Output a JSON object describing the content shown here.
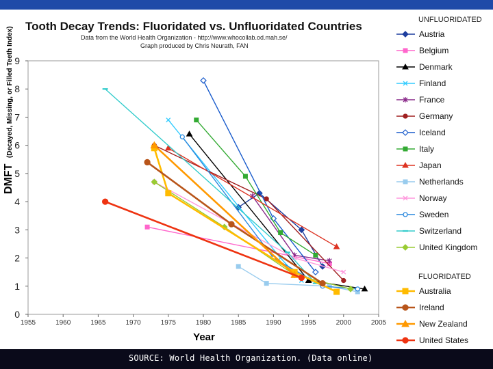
{
  "chart_data": {
    "type": "line",
    "title": "Tooth Decay Trends:  Fluoridated vs. Unfluoridated Countries",
    "subtitle_lines": [
      "Data from the World Health Organization - http://www.whocollab.od.mah.se/",
      "Graph produced by Chris Neurath, FAN"
    ],
    "xlabel": "Year",
    "ylabel_big": "DMFT",
    "ylabel_small": "(Decayed, Missing, or Filled Teeth Index)",
    "xlim": [
      1955,
      2005
    ],
    "ylim": [
      0,
      9
    ],
    "xticks": [
      1955,
      1960,
      1965,
      1970,
      1975,
      1980,
      1985,
      1990,
      1995,
      2000,
      2005
    ],
    "yticks": [
      0,
      1,
      2,
      3,
      4,
      5,
      6,
      7,
      8,
      9
    ],
    "legend_groups": [
      {
        "heading": "UNFLUORIDATED",
        "names": [
          "Austria",
          "Belgium",
          "Denmark",
          "Finland",
          "France",
          "Germany",
          "Iceland",
          "Italy",
          "Japan",
          "Netherlands",
          "Norway",
          "Sweden",
          "Switzerland",
          "United Kingdom"
        ]
      },
      {
        "heading": "FLUORIDATED",
        "names": [
          "Australia",
          "Ireland",
          "New Zealand",
          "United States"
        ]
      }
    ],
    "series": [
      {
        "name": "Austria",
        "group": "unfluoridated",
        "color": "#1f3f9f",
        "marker": "diamond",
        "fill": true,
        "bold": false,
        "x": [
          1985,
          1988,
          1994,
          1997
        ],
        "y": [
          3.8,
          4.3,
          3.0,
          1.7
        ]
      },
      {
        "name": "Belgium",
        "group": "unfluoridated",
        "color": "#ff66cc",
        "marker": "square",
        "fill": true,
        "bold": false,
        "x": [
          1972,
          1998
        ],
        "y": [
          3.1,
          1.8
        ]
      },
      {
        "name": "Denmark",
        "group": "unfluoridated",
        "color": "#000000",
        "marker": "triangle",
        "fill": true,
        "bold": false,
        "x": [
          1978,
          1995,
          2003
        ],
        "y": [
          6.4,
          1.2,
          0.9
        ]
      },
      {
        "name": "Finland",
        "group": "unfluoridated",
        "color": "#33ccff",
        "marker": "x",
        "fill": false,
        "bold": false,
        "x": [
          1975,
          1991,
          1994
        ],
        "y": [
          6.9,
          2.0,
          1.2
        ]
      },
      {
        "name": "France",
        "group": "unfluoridated",
        "color": "#8a2a8a",
        "marker": "star",
        "fill": false,
        "bold": false,
        "x": [
          1987,
          1993,
          1998
        ],
        "y": [
          4.2,
          2.1,
          1.9
        ]
      },
      {
        "name": "Germany",
        "group": "unfluoridated",
        "color": "#a02020",
        "marker": "circle",
        "fill": true,
        "bold": false,
        "x": [
          1973,
          1989,
          2000
        ],
        "y": [
          6.0,
          4.1,
          1.2
        ]
      },
      {
        "name": "Iceland",
        "group": "unfluoridated",
        "color": "#1a5ccc",
        "marker": "diamond",
        "fill": false,
        "bold": false,
        "x": [
          1980,
          1990,
          1996
        ],
        "y": [
          8.3,
          3.4,
          1.5
        ]
      },
      {
        "name": "Italy",
        "group": "unfluoridated",
        "color": "#33aa33",
        "marker": "square",
        "fill": true,
        "bold": false,
        "x": [
          1979,
          1986,
          1991,
          1996
        ],
        "y": [
          6.9,
          4.9,
          2.9,
          2.1
        ]
      },
      {
        "name": "Japan",
        "group": "unfluoridated",
        "color": "#dd3322",
        "marker": "triangle",
        "fill": true,
        "bold": false,
        "x": [
          1975,
          1999
        ],
        "y": [
          5.9,
          2.4
        ]
      },
      {
        "name": "Netherlands",
        "group": "unfluoridated",
        "color": "#99ccee",
        "marker": "square",
        "fill": true,
        "bold": false,
        "x": [
          1985,
          1989,
          1998,
          2002
        ],
        "y": [
          1.7,
          1.1,
          1.0,
          0.8
        ]
      },
      {
        "name": "Norway",
        "group": "unfluoridated",
        "color": "#ff99dd",
        "marker": "x",
        "fill": false,
        "bold": false,
        "x": [
          1973,
          1993,
          2000
        ],
        "y": [
          4.7,
          2.0,
          1.5
        ]
      },
      {
        "name": "Sweden",
        "group": "unfluoridated",
        "color": "#2a88dd",
        "marker": "circle",
        "fill": false,
        "bold": false,
        "x": [
          1977,
          1990,
          1997,
          2002
        ],
        "y": [
          6.3,
          2.0,
          1.0,
          0.9
        ]
      },
      {
        "name": "Switzerland",
        "group": "unfluoridated",
        "color": "#33cccc",
        "marker": "dash",
        "fill": true,
        "bold": false,
        "x": [
          1966,
          1992,
          1996
        ],
        "y": [
          8.0,
          2.2,
          1.1
        ]
      },
      {
        "name": "United Kingdom",
        "group": "unfluoridated",
        "color": "#99cc33",
        "marker": "diamond",
        "fill": true,
        "bold": false,
        "x": [
          1973,
          1983,
          1993,
          2001
        ],
        "y": [
          4.7,
          3.1,
          1.4,
          0.9
        ]
      },
      {
        "name": "Australia",
        "group": "fluoridated",
        "color": "#ffbb00",
        "marker": "square",
        "fill": true,
        "bold": true,
        "x": [
          1973,
          1975,
          1993,
          1999
        ],
        "y": [
          5.9,
          4.3,
          1.5,
          0.8
        ]
      },
      {
        "name": "Ireland",
        "group": "fluoridated",
        "color": "#b8551a",
        "marker": "circle",
        "fill": true,
        "bold": true,
        "x": [
          1972,
          1984,
          1997
        ],
        "y": [
          5.4,
          3.2,
          1.1
        ]
      },
      {
        "name": "New Zealand",
        "group": "fluoridated",
        "color": "#ff9900",
        "marker": "triangle",
        "fill": true,
        "bold": true,
        "x": [
          1973,
          1993
        ],
        "y": [
          6.0,
          1.4
        ]
      },
      {
        "name": "United States",
        "group": "fluoridated",
        "color": "#ee3311",
        "marker": "circle",
        "fill": true,
        "bold": true,
        "x": [
          1966,
          1994
        ],
        "y": [
          4.0,
          1.3
        ]
      }
    ]
  },
  "footer": {
    "source": "SOURCE: World Health Organization. (Data online)"
  }
}
